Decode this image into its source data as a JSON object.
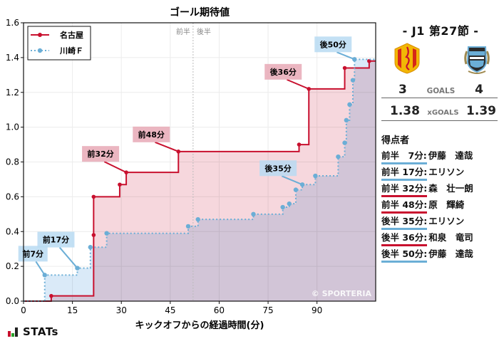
{
  "chart": {
    "title": "ゴール期待値",
    "xlabel": "キックオフからの経過時間(分)",
    "half_labels": {
      "first": "前半",
      "second": "後半"
    },
    "copyright": "© SPORTERIA",
    "legend": [
      {
        "name": "名古屋",
        "color": "#c8102e",
        "style": "solid"
      },
      {
        "name": "川崎Ｆ",
        "color": "#6baed6",
        "style": "dotted"
      }
    ]
  },
  "chart_data": {
    "type": "line",
    "title": "ゴール期待値",
    "xlabel": "キックオフからの経過時間(分)",
    "ylabel": "",
    "xlim": [
      0,
      108
    ],
    "ylim": [
      0,
      1.6
    ],
    "xticks": [
      0,
      15,
      30,
      45,
      60,
      75,
      90
    ],
    "yticks": [
      0.0,
      0.2,
      0.4,
      0.6,
      0.8,
      1.0,
      1.2,
      1.4,
      1.6
    ],
    "grid": true,
    "legend_position": "upper left",
    "halftime_marker": 52,
    "step": true,
    "series": [
      {
        "name": "名古屋",
        "color": "#c8102e",
        "x": [
          0,
          8.5,
          21.5,
          21.5,
          29.5,
          31.5,
          47.5,
          84.5,
          87.5,
          98.5,
          106,
          108
        ],
        "y": [
          0.0,
          0.03,
          0.38,
          0.6,
          0.67,
          0.74,
          0.86,
          0.9,
          1.22,
          1.34,
          1.38,
          1.38
        ]
      },
      {
        "name": "川崎Ｆ",
        "color": "#6baed6",
        "x": [
          0,
          6.5,
          16.5,
          20.5,
          25.5,
          50.5,
          53.5,
          70.5,
          79.5,
          81.5,
          83.5,
          85.5,
          89.5,
          96.5,
          98.5,
          99,
          100,
          101,
          101.5,
          108
        ],
        "y": [
          0.0,
          0.15,
          0.19,
          0.31,
          0.39,
          0.43,
          0.47,
          0.5,
          0.54,
          0.56,
          0.64,
          0.67,
          0.72,
          0.83,
          0.91,
          1.04,
          1.13,
          1.27,
          1.39,
          1.39
        ]
      }
    ],
    "annotations": [
      {
        "text": "前7分",
        "team": "away",
        "x": 6.5,
        "y": 0.15
      },
      {
        "text": "前17分",
        "team": "away",
        "x": 16.5,
        "y": 0.19
      },
      {
        "text": "前32分",
        "team": "home",
        "x": 31.5,
        "y": 0.74
      },
      {
        "text": "前48分",
        "team": "home",
        "x": 47.5,
        "y": 0.86
      },
      {
        "text": "後35分",
        "team": "away",
        "x": 85.5,
        "y": 0.67
      },
      {
        "text": "後36分",
        "team": "home",
        "x": 87.5,
        "y": 1.22
      },
      {
        "text": "後50分",
        "team": "away",
        "x": 101.5,
        "y": 1.39
      }
    ]
  },
  "match": {
    "round": "- J1 第27節 -",
    "home": {
      "name": "名古屋",
      "goals": "3",
      "xg": "1.38"
    },
    "away": {
      "name": "川崎Ｆ",
      "goals": "4",
      "xg": "1.39"
    },
    "goals_label": "GOALS",
    "xgoals_label": "xGOALS"
  },
  "scorers": {
    "title": "得点者",
    "items": [
      {
        "time": "前半　7分:",
        "name": "伊藤　達哉",
        "team": "away"
      },
      {
        "time": "前半 17分:",
        "name": "エリソン",
        "team": "away"
      },
      {
        "time": "前半 32分:",
        "name": "森　壮一朗",
        "team": "home"
      },
      {
        "time": "前半 48分:",
        "name": "原　輝綺",
        "team": "home"
      },
      {
        "time": "後半 35分:",
        "name": "エリソン",
        "team": "away"
      },
      {
        "time": "後半 36分:",
        "name": "和泉　竜司",
        "team": "home"
      },
      {
        "time": "後半 50分:",
        "name": "伊藤　達哉",
        "team": "away"
      }
    ]
  },
  "brand": {
    "text": "STATs",
    "colors": [
      "#c8102e",
      "#2ca02c",
      "#222222"
    ]
  }
}
